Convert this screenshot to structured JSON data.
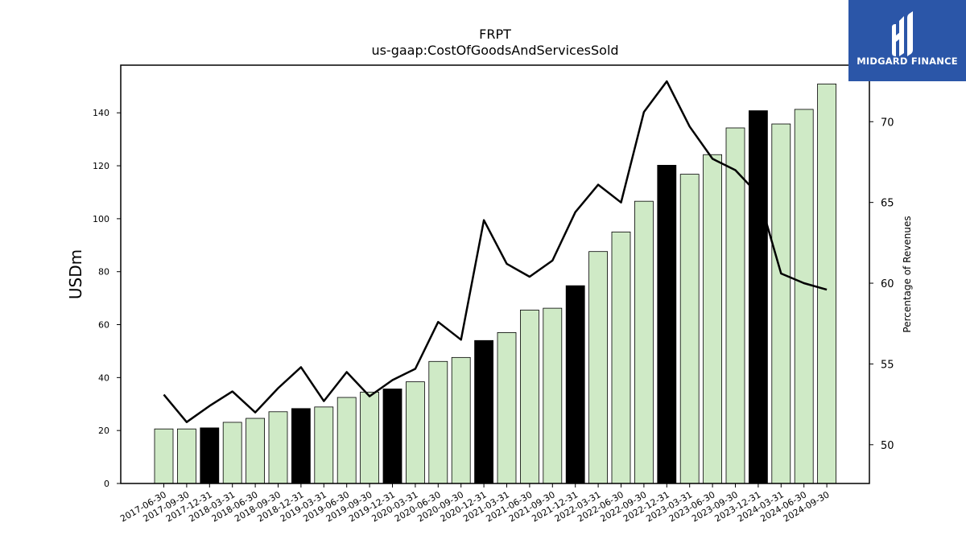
{
  "logo": {
    "text": "MIDGARD FINANCE",
    "bg_color": "#2b56a8"
  },
  "chart_data": {
    "type": "bar",
    "title": "FRPT",
    "subtitle": "us-gaap:CostOfGoodsAndServicesSold",
    "ylabel": "USDm",
    "ylabel_right": "Percentage of Revenues",
    "ylim": [
      0,
      158
    ],
    "ylim_right": [
      47.6,
      73.5
    ],
    "yticks": [
      0,
      20,
      40,
      60,
      80,
      100,
      120,
      140
    ],
    "yticks_right": [
      50,
      55,
      60,
      65,
      70
    ],
    "grid": false,
    "bar_color": "#cfeac6",
    "highlight_color": "#000000",
    "line_color": "#000000",
    "categories": [
      "2017-06-30",
      "2017-09-30",
      "2017-12-31",
      "2018-03-31",
      "2018-06-30",
      "2018-09-30",
      "2018-12-31",
      "2019-03-31",
      "2019-06-30",
      "2019-09-30",
      "2019-12-31",
      "2020-03-31",
      "2020-06-30",
      "2020-09-30",
      "2020-12-31",
      "2021-03-31",
      "2021-06-30",
      "2021-09-30",
      "2021-12-31",
      "2022-03-31",
      "2022-06-30",
      "2022-09-30",
      "2022-12-31",
      "2023-03-31",
      "2023-06-30",
      "2023-09-30",
      "2023-12-31",
      "2024-03-31",
      "2024-06-30",
      "2024-09-30"
    ],
    "series": [
      {
        "kind": "bar",
        "values": [
          20.6,
          20.6,
          21.0,
          23.1,
          24.6,
          27.1,
          28.3,
          28.9,
          32.5,
          34.5,
          35.7,
          38.4,
          46.1,
          47.6,
          54.0,
          57.0,
          65.5,
          66.2,
          74.7,
          87.6,
          95.0,
          106.6,
          120.2,
          116.8,
          124.2,
          134.3,
          140.8,
          135.8,
          141.3,
          150.9
        ],
        "highlight": [
          false,
          false,
          true,
          false,
          false,
          false,
          true,
          false,
          false,
          false,
          true,
          false,
          false,
          false,
          true,
          false,
          false,
          false,
          true,
          false,
          false,
          false,
          true,
          false,
          false,
          false,
          true,
          false,
          false,
          false
        ]
      },
      {
        "kind": "line",
        "axis": "right",
        "values": [
          53.1,
          51.4,
          52.4,
          53.3,
          52.0,
          53.5,
          54.8,
          52.7,
          54.5,
          53.0,
          54.0,
          54.7,
          57.6,
          56.5,
          63.9,
          61.2,
          60.4,
          61.4,
          64.4,
          66.1,
          65.0,
          70.6,
          72.5,
          69.7,
          67.7,
          67.0,
          65.5,
          60.6,
          60.0,
          59.6
        ]
      }
    ]
  }
}
